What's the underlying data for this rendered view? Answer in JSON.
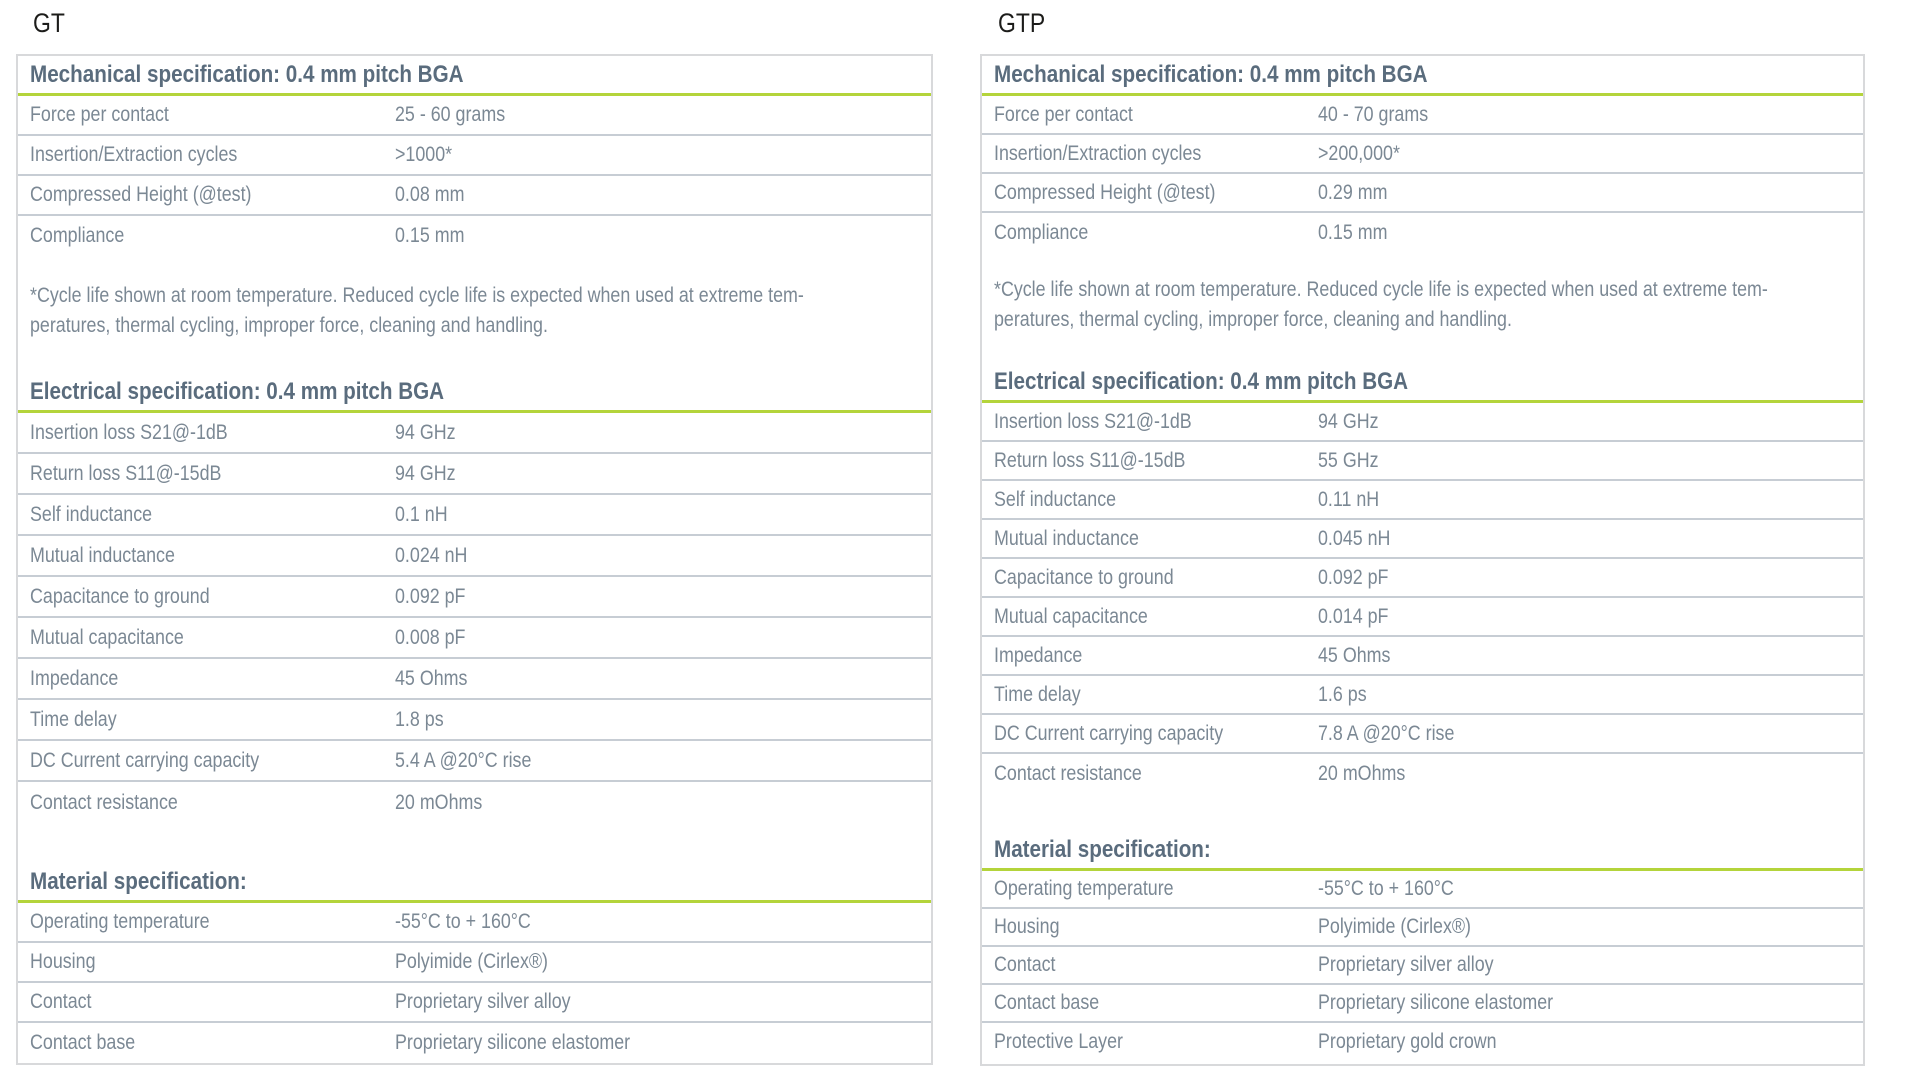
{
  "colors": {
    "accent_green": "#b4d43b",
    "section_header_text": "#5a6c7d",
    "row_text": "#7b8894",
    "divider": "#c7cdd4",
    "table_border": "#d8d9db",
    "table_label_text": "#1c1c1a",
    "background": "#ffffff"
  },
  "tables": [
    {
      "id": "gt",
      "label": "GT",
      "sections": [
        {
          "title": "Mechanical specification: 0.4 mm pitch BGA",
          "rows": [
            {
              "label": "Force per contact",
              "value": "25 - 60 grams"
            },
            {
              "label": "Insertion/Extraction cycles",
              "value": ">1000*"
            },
            {
              "label": "Compressed Height (@test)",
              "value": "0.08 mm"
            },
            {
              "label": "Compliance",
              "value": "0.15 mm"
            }
          ],
          "footnote": [
            "*Cycle life shown at room temperature. Reduced cycle life is expected when used at extreme tem-",
            "peratures, thermal cycling, improper force, cleaning and handling."
          ]
        },
        {
          "title": "Electrical specification: 0.4 mm pitch BGA",
          "rows": [
            {
              "label": "Insertion loss S21@-1dB",
              "value": "94 GHz"
            },
            {
              "label": "Return loss S11@-15dB",
              "value": "94 GHz"
            },
            {
              "label": "Self inductance",
              "value": "0.1 nH"
            },
            {
              "label": "Mutual inductance",
              "value": "0.024 nH"
            },
            {
              "label": "Capacitance to ground",
              "value": "0.092 pF"
            },
            {
              "label": "Mutual capacitance",
              "value": "0.008 pF"
            },
            {
              "label": "Impedance",
              "value": "45 Ohms"
            },
            {
              "label": "Time delay",
              "value": "1.8 ps"
            },
            {
              "label": "DC Current carrying capacity",
              "value": "5.4 A @20°C rise"
            },
            {
              "label": "Contact resistance",
              "value": "20 mOhms"
            }
          ]
        },
        {
          "title": "Material specification:",
          "rows": [
            {
              "label": "Operating temperature",
              "value": "-55°C to + 160°C"
            },
            {
              "label": "Housing",
              "value": "Polyimide (Cirlex®)"
            },
            {
              "label": "Contact",
              "value": "Proprietary silver alloy"
            },
            {
              "label": "Contact base",
              "value": "Proprietary silicone elastomer"
            }
          ]
        }
      ]
    },
    {
      "id": "gtp",
      "label": "GTP",
      "sections": [
        {
          "title": "Mechanical specification: 0.4 mm pitch BGA",
          "rows": [
            {
              "label": "Force per contact",
              "value": "40 - 70 grams"
            },
            {
              "label": "Insertion/Extraction cycles",
              "value": ">200,000*"
            },
            {
              "label": "Compressed Height (@test)",
              "value": "0.29 mm"
            },
            {
              "label": "Compliance",
              "value": "0.15 mm"
            }
          ],
          "footnote": [
            "*Cycle life shown at room temperature. Reduced cycle life is expected when used at extreme tem-",
            "peratures, thermal cycling, improper force, cleaning and handling."
          ]
        },
        {
          "title": "Electrical specification: 0.4 mm pitch BGA",
          "rows": [
            {
              "label": "Insertion loss S21@-1dB",
              "value": "94 GHz"
            },
            {
              "label": "Return loss S11@-15dB",
              "value": "55 GHz"
            },
            {
              "label": "Self inductance",
              "value": "0.11 nH"
            },
            {
              "label": "Mutual inductance",
              "value": "0.045 nH"
            },
            {
              "label": "Capacitance to ground",
              "value": "0.092 pF"
            },
            {
              "label": "Mutual capacitance",
              "value": "0.014 pF"
            },
            {
              "label": "Impedance",
              "value": "45 Ohms"
            },
            {
              "label": "Time delay",
              "value": "1.6 ps"
            },
            {
              "label": "DC Current carrying capacity",
              "value": "7.8 A @20°C rise"
            },
            {
              "label": "Contact resistance",
              "value": "20 mOhms"
            }
          ]
        },
        {
          "title": "Material specification:",
          "rows": [
            {
              "label": "Operating temperature",
              "value": "-55°C to + 160°C"
            },
            {
              "label": "Housing",
              "value": "Polyimide (Cirlex®)"
            },
            {
              "label": "Contact",
              "value": "Proprietary silver alloy"
            },
            {
              "label": "Contact base",
              "value": "Proprietary silicone elastomer"
            },
            {
              "label": "Protective Layer",
              "value": "Proprietary gold crown"
            }
          ]
        }
      ]
    }
  ]
}
